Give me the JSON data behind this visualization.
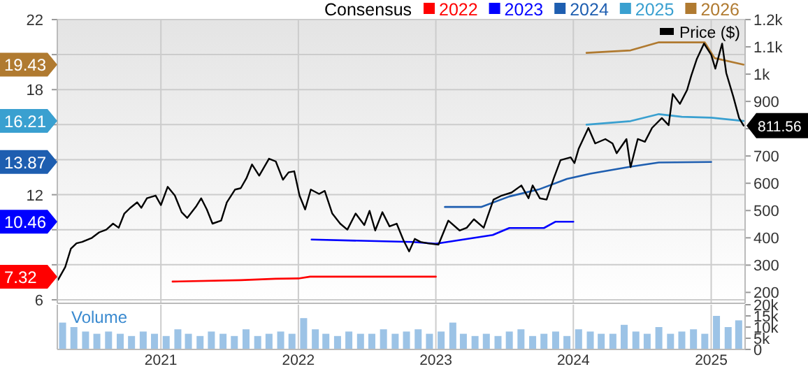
{
  "chart_data": [
    {
      "type": "line",
      "legend_title": "Consensus",
      "legend": "top right",
      "grid": true,
      "tick_labels": "y",
      "xlim": [
        "2020-04-01",
        "2025-04-01"
      ],
      "xticks": [
        "2021",
        "2022",
        "2023",
        "2024",
        "2025"
      ],
      "ylim": [
        5.8,
        22
      ],
      "yticks": [
        6,
        {
          "value": 8,
          "label": null
        },
        {
          "value": 10,
          "label": null
        },
        12,
        {
          "value": 14,
          "label": null
        },
        {
          "value": 16,
          "label": null
        },
        18,
        {
          "value": 20,
          "label": null
        },
        22
      ],
      "annotations": [
        "7.32",
        "10.46",
        "13.87",
        "16.21",
        "19.43"
      ],
      "y2lim": [
        160,
        1200
      ],
      "y2ticks": [
        200,
        300,
        400,
        500,
        600,
        700,
        {
          "value": 800,
          "label": null
        },
        900,
        {
          "value": 1000,
          "label": "1k"
        },
        {
          "value": 1100,
          "label": "1.1k"
        },
        {
          "value": 1200,
          "label": "1.2k"
        }
      ],
      "series": [
        {
          "name": "2022",
          "color": "#ff0000",
          "x": [
            "2021-02-01",
            "2021-08-01",
            "2021-11-01",
            "2022-01-01",
            "2022-02-01",
            "2023-01-01"
          ],
          "values": [
            7.04,
            7.12,
            7.2,
            7.22,
            7.32,
            7.32
          ]
        },
        {
          "name": "2023",
          "color": "#0000ff",
          "x": [
            "2022-02-05",
            "2022-11-01",
            "2023-01-01",
            "2023-06-01",
            "2023-07-15",
            "2023-10-15",
            "2023-11-15",
            "2024-01-01"
          ],
          "values": [
            9.44,
            9.3,
            9.2,
            9.7,
            10.1,
            10.1,
            10.46,
            10.46
          ]
        },
        {
          "name": "2024",
          "color": "#1e5eb0",
          "x": [
            "2023-01-25",
            "2023-05-01",
            "2023-07-15",
            "2023-10-01",
            "2023-12-15",
            "2024-02-15",
            "2024-06-01",
            "2024-08-15",
            "2025-01-01"
          ],
          "values": [
            11.3,
            11.3,
            11.9,
            12.3,
            12.9,
            13.2,
            13.6,
            13.84,
            13.87
          ]
        },
        {
          "name": "2025",
          "color": "#3aa0d0",
          "x": [
            "2024-02-05",
            "2024-06-01",
            "2024-08-15",
            "2024-10-15",
            "2025-01-01",
            "2025-03-28"
          ],
          "values": [
            16.0,
            16.2,
            16.6,
            16.45,
            16.4,
            16.21
          ]
        },
        {
          "name": "2026",
          "color": "#b07a30",
          "x": [
            "2024-02-05",
            "2024-06-01",
            "2024-08-15",
            "2024-12-15",
            "2025-01-10",
            "2025-03-28"
          ],
          "values": [
            20.1,
            20.24,
            20.7,
            20.7,
            19.8,
            19.43
          ]
        },
        {
          "name": "Price ($)",
          "color": "#000000",
          "axis": "y2",
          "x": [
            "2020-04-03",
            "2020-04-22",
            "2020-05-07",
            "2020-05-22",
            "2020-06-06",
            "2020-07-02",
            "2020-07-21",
            "2020-08-09",
            "2020-08-27",
            "2020-09-11",
            "2020-09-26",
            "2020-10-11",
            "2020-10-30",
            "2020-11-10",
            "2020-11-25",
            "2020-12-18",
            "2021-01-01",
            "2021-01-19",
            "2021-02-07",
            "2021-02-25",
            "2021-03-12",
            "2021-04-04",
            "2021-04-18",
            "2021-05-03",
            "2021-05-18",
            "2021-06-10",
            "2021-06-25",
            "2021-07-17",
            "2021-08-01",
            "2021-08-16",
            "2021-08-31",
            "2021-09-19",
            "2021-10-15",
            "2021-11-02",
            "2021-11-21",
            "2021-12-06",
            "2021-12-21",
            "2022-01-04",
            "2022-01-19",
            "2022-02-03",
            "2022-02-25",
            "2022-03-12",
            "2022-04-01",
            "2022-04-22",
            "2022-05-11",
            "2022-06-02",
            "2022-06-25",
            "2022-07-09",
            "2022-07-24",
            "2022-08-12",
            "2022-08-31",
            "2022-09-19",
            "2022-10-07",
            "2022-10-22",
            "2022-11-06",
            "2022-11-21",
            "2022-12-10",
            "2023-01-08",
            "2023-02-03",
            "2023-03-05",
            "2023-03-24",
            "2023-04-12",
            "2023-05-08",
            "2023-06-03",
            "2023-06-25",
            "2023-07-21",
            "2023-08-16",
            "2023-09-04",
            "2023-09-15",
            "2023-10-04",
            "2023-10-22",
            "2023-11-10",
            "2023-11-28",
            "2023-12-25",
            "2024-01-04",
            "2024-01-15",
            "2024-02-10",
            "2024-02-28",
            "2024-03-26",
            "2024-04-14",
            "2024-04-25",
            "2024-05-21",
            "2024-06-01",
            "2024-06-20",
            "2024-07-09",
            "2024-07-28",
            "2024-08-23",
            "2024-09-10",
            "2024-09-21",
            "2024-10-10",
            "2024-10-29",
            "2024-11-09",
            "2024-11-24",
            "2024-12-13",
            "2025-01-01",
            "2025-01-12",
            "2025-01-30",
            "2025-02-10",
            "2025-03-01",
            "2025-03-16",
            "2025-03-28"
          ],
          "values": [
            246,
            293,
            360,
            380,
            385,
            400,
            420,
            430,
            452,
            437,
            489,
            509,
            530,
            510,
            545,
            555,
            520,
            587,
            555,
            494,
            473,
            514,
            545,
            504,
            452,
            463,
            530,
            577,
            582,
            618,
            669,
            628,
            690,
            680,
            613,
            640,
            644,
            555,
            504,
            577,
            561,
            572,
            489,
            452,
            430,
            489,
            447,
            499,
            427,
            494,
            442,
            452,
            391,
            350,
            396,
            385,
            380,
            375,
            463,
            427,
            437,
            468,
            437,
            540,
            555,
            566,
            592,
            545,
            592,
            545,
            540,
            618,
            685,
            695,
            674,
            726,
            803,
            746,
            762,
            746,
            710,
            762,
            659,
            762,
            752,
            803,
            839,
            813,
            927,
            891,
            942,
            994,
            1056,
            1112,
            1071,
            1020,
            1112,
            1004,
            916,
            839,
            811.56
          ],
          "value_labels": [
            null,
            null,
            null,
            null,
            null,
            null,
            null,
            null,
            null,
            null,
            null,
            null,
            null,
            null,
            null,
            null,
            null,
            null,
            null,
            null,
            null,
            null,
            null,
            null,
            null,
            null,
            null,
            null,
            null,
            null,
            null,
            null,
            null,
            null,
            null,
            null,
            null,
            null,
            null,
            null,
            null,
            null,
            null,
            null,
            null,
            null,
            null,
            null,
            null,
            null,
            null,
            null,
            null,
            null,
            null,
            null,
            null,
            null,
            null,
            null,
            null,
            null,
            null,
            null,
            null,
            null,
            null,
            null,
            null,
            null,
            null,
            null,
            null,
            null,
            null,
            null,
            null,
            null,
            null,
            null,
            null,
            null,
            null,
            null,
            null,
            null,
            null,
            null,
            null,
            null,
            null,
            null,
            null,
            null,
            null,
            null,
            null,
            null,
            null,
            null,
            "811.56"
          ]
        }
      ]
    },
    {
      "type": "bar",
      "grid": "x",
      "annotations": [
        "Volume"
      ],
      "xlim": [
        "2020-04-01",
        "2025-04-01"
      ],
      "xticks": [
        "2021",
        "2022",
        "2023",
        "2024",
        "2025"
      ],
      "y2lim": [
        0,
        20
      ],
      "y2ticks": [
        {
          "value": 0,
          "label": "0"
        },
        {
          "value": 5,
          "label": "5k"
        },
        {
          "value": 10,
          "label": "10k"
        },
        {
          "value": 15,
          "label": "15k"
        },
        {
          "value": 20,
          "label": "20k"
        }
      ],
      "series": [
        {
          "color": "#9cc3e6",
          "axis": "y2",
          "x": [
            "2020-04-15",
            "2020-05-15",
            "2020-06-15",
            "2020-07-15",
            "2020-08-15",
            "2020-09-15",
            "2020-10-15",
            "2020-11-15",
            "2020-12-15",
            "2021-01-15",
            "2021-02-15",
            "2021-03-15",
            "2021-04-15",
            "2021-05-15",
            "2021-06-15",
            "2021-07-15",
            "2021-08-15",
            "2021-09-15",
            "2021-10-15",
            "2021-11-15",
            "2021-12-15",
            "2022-01-15",
            "2022-02-15",
            "2022-03-15",
            "2022-04-15",
            "2022-05-15",
            "2022-06-15",
            "2022-07-15",
            "2022-08-15",
            "2022-09-15",
            "2022-10-15",
            "2022-11-15",
            "2022-12-15",
            "2023-01-15",
            "2023-02-15",
            "2023-03-15",
            "2023-04-15",
            "2023-05-15",
            "2023-06-15",
            "2023-07-15",
            "2023-08-15",
            "2023-09-15",
            "2023-10-15",
            "2023-11-15",
            "2023-12-15",
            "2024-01-15",
            "2024-02-15",
            "2024-03-15",
            "2024-04-15",
            "2024-05-15",
            "2024-06-15",
            "2024-07-15",
            "2024-08-15",
            "2024-09-15",
            "2024-10-15",
            "2024-11-15",
            "2024-12-15",
            "2025-01-15",
            "2025-02-15",
            "2025-03-15"
          ],
          "values": [
            12,
            10,
            8,
            7,
            8,
            7,
            6,
            8,
            7,
            6,
            9,
            7,
            6,
            8,
            7,
            6,
            9,
            6,
            7,
            8,
            7,
            14,
            9,
            7,
            6,
            8,
            7,
            7,
            9,
            7,
            8,
            9,
            7,
            8,
            12,
            7,
            6,
            7,
            6,
            8,
            9,
            6,
            7,
            8,
            6,
            9,
            8,
            7,
            7,
            11,
            8,
            7,
            10,
            7,
            8,
            9,
            7,
            15,
            10,
            13
          ]
        }
      ]
    }
  ]
}
